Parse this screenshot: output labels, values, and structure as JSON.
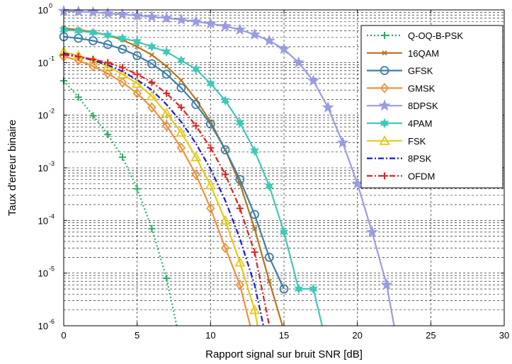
{
  "chart_data": {
    "type": "line",
    "xlabel": "Rapport signal sur bruit SNR [dB]",
    "ylabel": "Taux d'erreur binaire",
    "xlim": [
      0,
      30
    ],
    "ylim": [
      1e-06,
      1
    ],
    "yscale": "log",
    "grid": true,
    "legend_position": "top-right",
    "x_ticks": [
      0,
      5,
      10,
      15,
      20,
      25,
      30
    ],
    "y_ticks": [
      {
        "base": "10",
        "exp": "0",
        "value": 1
      },
      {
        "base": "10",
        "exp": "-1",
        "value": 0.1
      },
      {
        "base": "10",
        "exp": "-2",
        "value": 0.01
      },
      {
        "base": "10",
        "exp": "-3",
        "value": 0.001
      },
      {
        "base": "10",
        "exp": "-4",
        "value": 0.0001
      },
      {
        "base": "10",
        "exp": "-5",
        "value": 1e-05
      },
      {
        "base": "10",
        "exp": "-6",
        "value": 1e-06
      }
    ],
    "series": [
      {
        "name": "Q-OQ-B-PSK",
        "color": "#2eaa68",
        "dash": "dotted",
        "marker": "plus",
        "x": [
          0,
          1,
          2,
          3,
          4,
          5,
          6,
          7,
          7.7
        ],
        "y": [
          0.045,
          0.022,
          0.0098,
          0.0043,
          0.0016,
          0.0004,
          7e-05,
          8e-06,
          1e-06
        ]
      },
      {
        "name": "16QAM",
        "color": "#b8731c",
        "dash": "solid",
        "marker": "x",
        "x": [
          0,
          1,
          2,
          3,
          4,
          5,
          6,
          7,
          8,
          9,
          10,
          11,
          12,
          13,
          14,
          14.9
        ],
        "y": [
          0.45,
          0.42,
          0.38,
          0.33,
          0.27,
          0.2,
          0.14,
          0.085,
          0.046,
          0.02,
          0.0075,
          0.0022,
          0.0005,
          7e-05,
          7e-06,
          1e-06
        ]
      },
      {
        "name": "GFSK",
        "color": "#3c7ea8",
        "dash": "solid",
        "marker": "circle",
        "x": [
          0,
          1,
          2,
          3,
          4,
          5,
          6,
          7,
          8,
          9,
          10,
          11,
          12,
          13,
          14,
          15
        ],
        "y": [
          0.31,
          0.29,
          0.26,
          0.22,
          0.18,
          0.135,
          0.095,
          0.06,
          0.033,
          0.016,
          0.0068,
          0.0022,
          0.0006,
          0.00013,
          2e-05,
          5e-06
        ]
      },
      {
        "name": "GMSK",
        "color": "#f0913a",
        "dash": "solid",
        "marker": "diamond",
        "x": [
          0,
          1,
          2,
          3,
          4,
          5,
          6,
          7,
          8,
          9,
          10,
          11,
          12,
          12.7
        ],
        "y": [
          0.13,
          0.11,
          0.085,
          0.062,
          0.042,
          0.026,
          0.014,
          0.0063,
          0.0024,
          0.00075,
          0.00017,
          3e-05,
          6e-06,
          1e-06
        ]
      },
      {
        "name": "8DPSK",
        "color": "#9a9ce0",
        "dash": "solid",
        "marker": "star",
        "x": [
          0,
          1,
          2,
          3,
          4,
          5,
          6,
          7,
          8,
          9,
          10,
          11,
          12,
          13,
          14,
          15,
          16,
          17,
          18,
          19,
          20,
          21,
          22,
          22.5
        ],
        "y": [
          0.95,
          0.93,
          0.9,
          0.86,
          0.82,
          0.78,
          0.74,
          0.7,
          0.65,
          0.6,
          0.55,
          0.49,
          0.42,
          0.34,
          0.26,
          0.18,
          0.1,
          0.045,
          0.014,
          0.003,
          0.0005,
          6e-05,
          6e-06,
          1e-06
        ]
      },
      {
        "name": "4PAM",
        "color": "#40c8b8",
        "dash": "solid",
        "marker": "hexstar",
        "x": [
          0,
          1,
          2,
          3,
          4,
          5,
          6,
          7,
          8,
          9,
          10,
          11,
          12,
          13,
          14,
          15,
          16,
          17,
          17.6
        ],
        "y": [
          0.42,
          0.4,
          0.37,
          0.33,
          0.29,
          0.25,
          0.2,
          0.16,
          0.11,
          0.075,
          0.04,
          0.019,
          0.0072,
          0.0021,
          0.00045,
          6e-05,
          5e-06,
          5e-06,
          1e-06
        ]
      },
      {
        "name": "FSK",
        "color": "#e8c81a",
        "dash": "solid",
        "marker": "triangle",
        "x": [
          0,
          1,
          2,
          3,
          4,
          5,
          6,
          7,
          8,
          9,
          10,
          11,
          12,
          13,
          13.2
        ],
        "y": [
          0.16,
          0.135,
          0.11,
          0.085,
          0.06,
          0.04,
          0.023,
          0.011,
          0.0047,
          0.0016,
          0.00047,
          0.0001,
          1.6e-05,
          2e-06,
          1e-06
        ]
      },
      {
        "name": "8PSK",
        "color": "#1a1ad8",
        "dash": "dashdot",
        "marker": "none",
        "x": [
          0,
          1,
          2,
          3,
          4,
          5,
          6,
          7,
          8,
          9,
          10,
          11,
          12,
          13,
          13.6
        ],
        "y": [
          0.15,
          0.13,
          0.11,
          0.09,
          0.068,
          0.047,
          0.03,
          0.016,
          0.0075,
          0.0029,
          0.00095,
          0.00024,
          4.5e-05,
          6e-06,
          1e-06
        ]
      },
      {
        "name": "OFDM",
        "color": "#e02020",
        "dash": "dashdot",
        "marker": "plus",
        "x": [
          0,
          1,
          2,
          3,
          4,
          5,
          6,
          7,
          8,
          9,
          10,
          11,
          12,
          13,
          14
        ],
        "y": [
          0.14,
          0.13,
          0.115,
          0.1,
          0.08,
          0.06,
          0.042,
          0.026,
          0.014,
          0.0063,
          0.0024,
          0.00075,
          0.00017,
          2.5e-05,
          1e-06
        ]
      }
    ]
  }
}
